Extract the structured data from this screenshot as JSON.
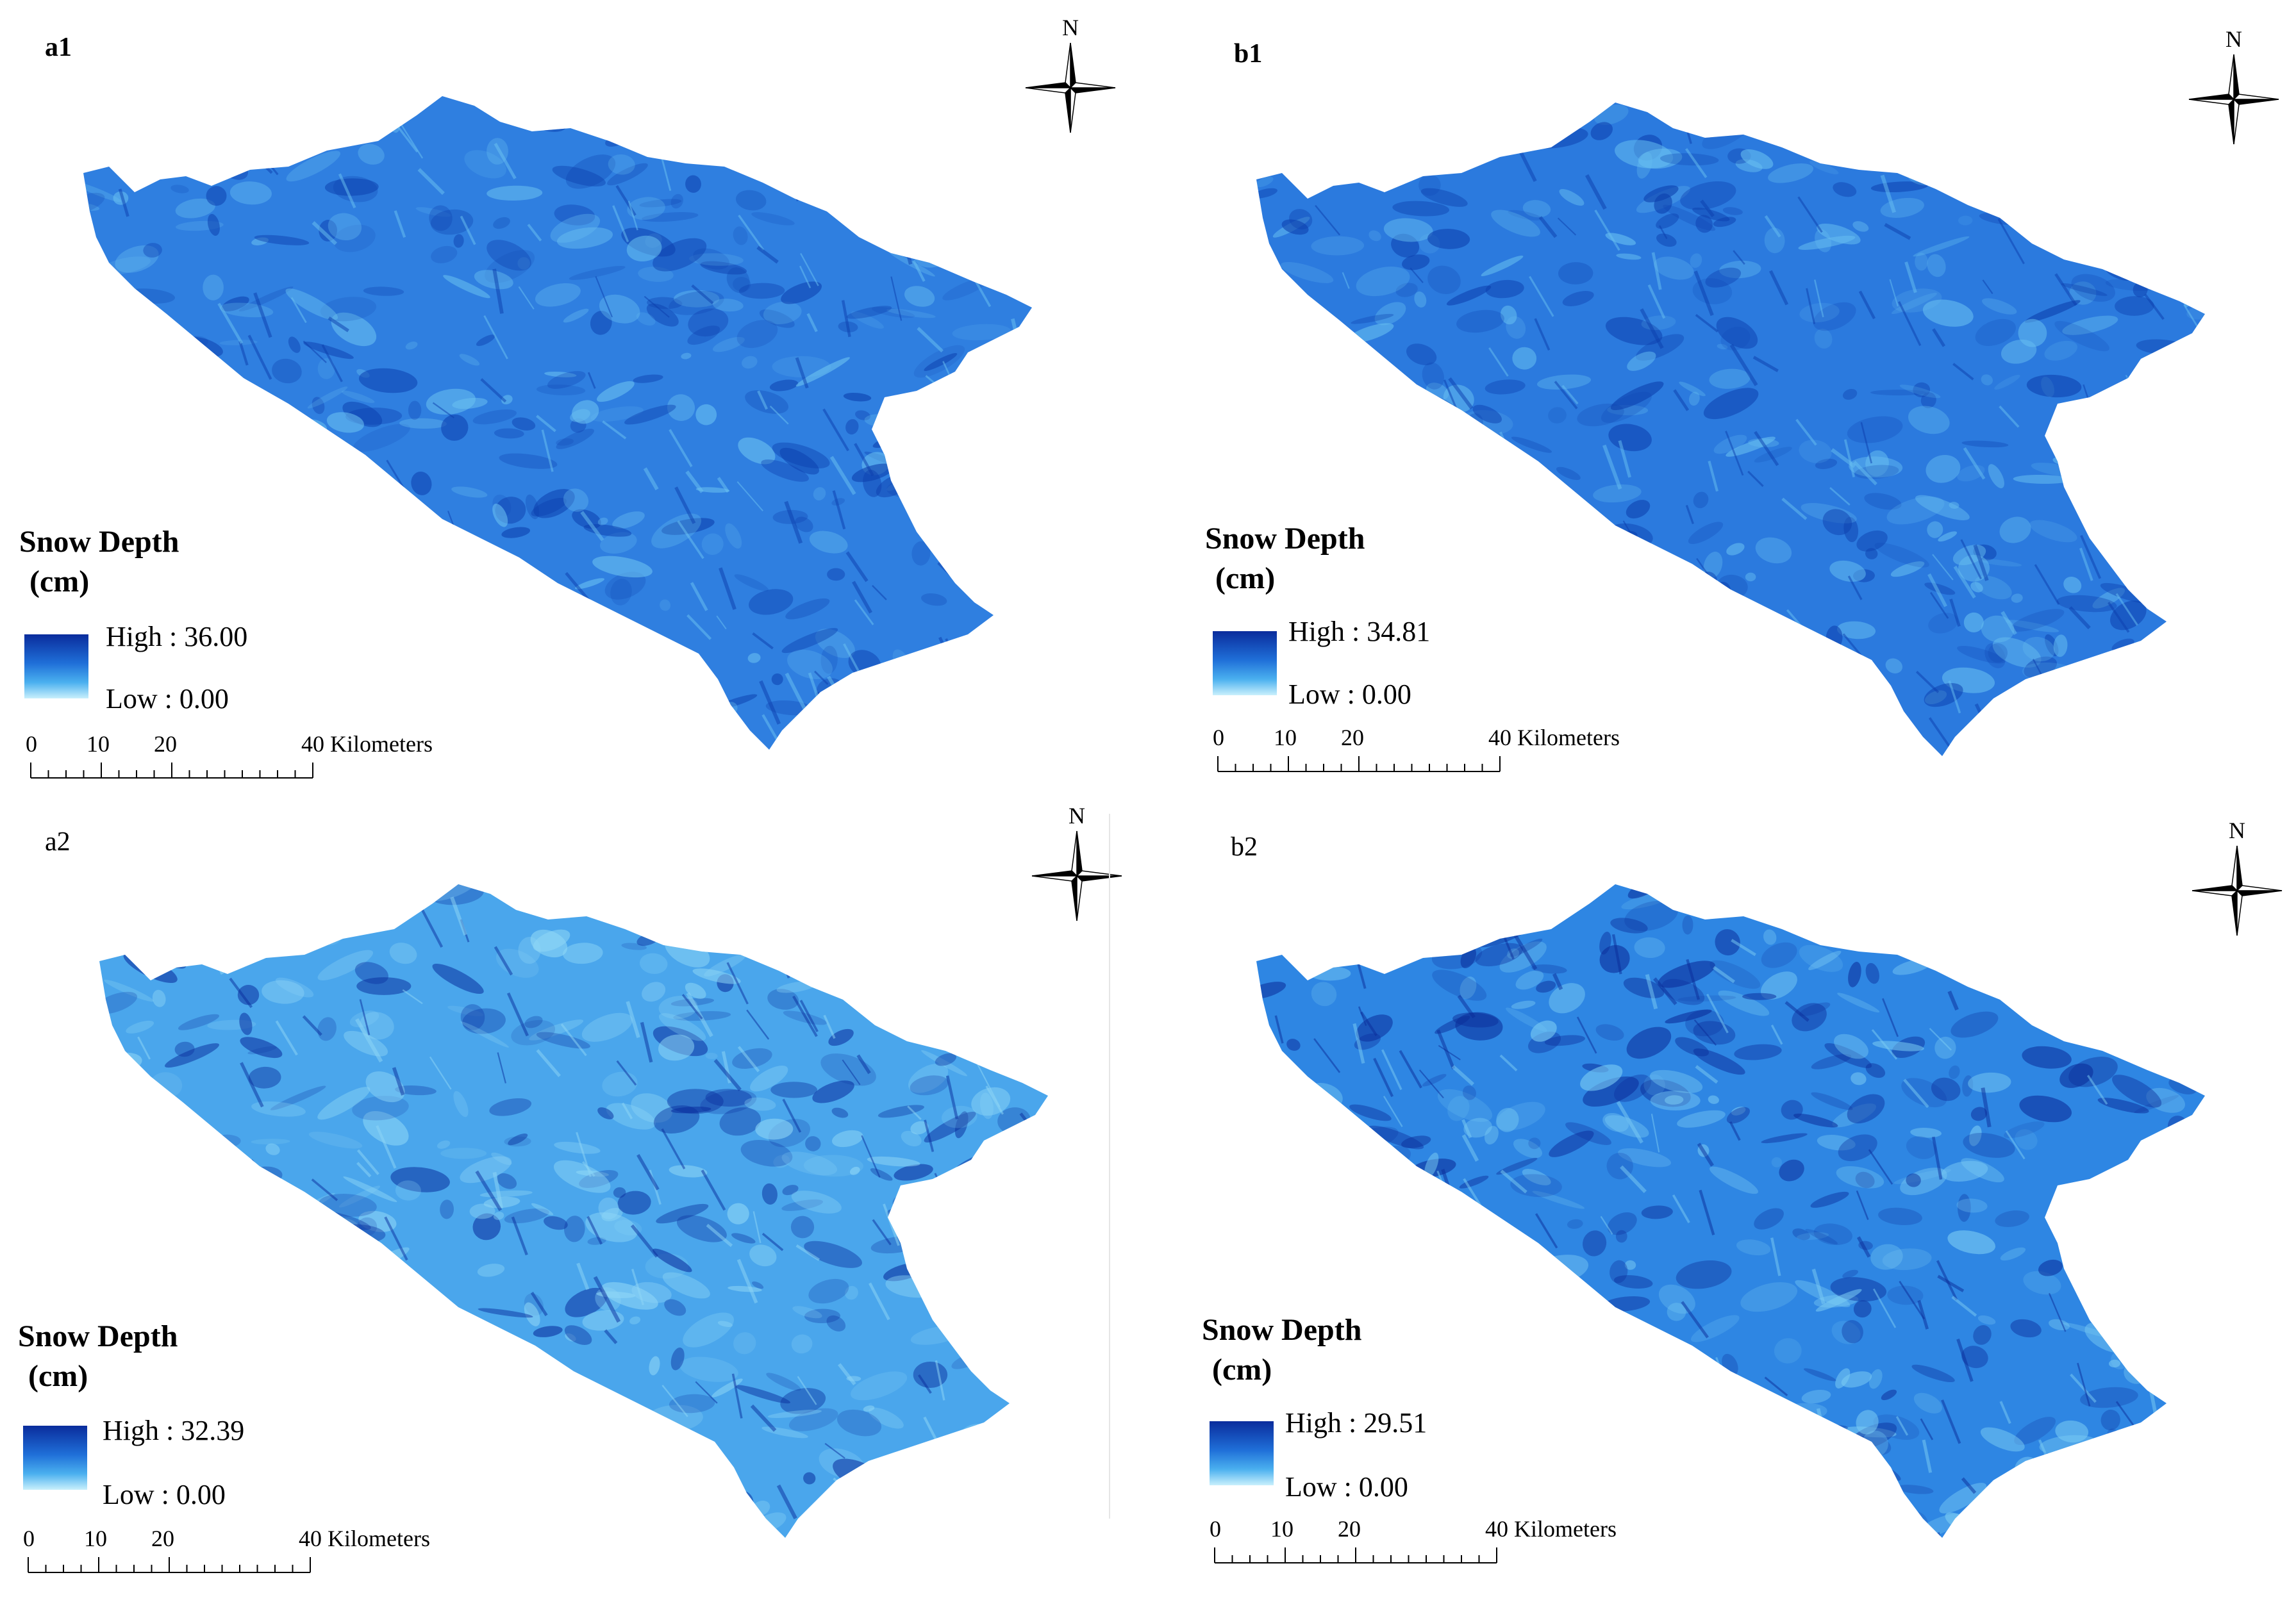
{
  "panels": [
    {
      "id": "a1",
      "label": "a1",
      "label_bold": true,
      "north": "N",
      "legend": {
        "title_line1": "Snow Depth",
        "title_line2": "(cm)",
        "high": "High : 36.00",
        "low": "Low : 0.00"
      },
      "scale": {
        "t0": "0",
        "t10": "10",
        "t20": "20",
        "t40": "40 Kilometers"
      },
      "colors": {
        "base": "#2f7fe0",
        "dark": "#0c3fae",
        "light": "#6cc3f2"
      }
    },
    {
      "id": "b1",
      "label": "b1",
      "label_bold": true,
      "north": "N",
      "legend": {
        "title_line1": "Snow Depth",
        "title_line2": "(cm)",
        "high": "High : 34.81",
        "low": "Low : 0.00"
      },
      "scale": {
        "t0": "0",
        "t10": "10",
        "t20": "20",
        "t40": "40 Kilometers"
      },
      "colors": {
        "base": "#2b7ade",
        "dark": "#0c3fae",
        "light": "#68c0f1"
      }
    },
    {
      "id": "a2",
      "label": "a2",
      "label_bold": false,
      "north": "N",
      "legend": {
        "title_line1": "Snow Depth",
        "title_line2": "(cm)",
        "high": "High : 32.39",
        "low": "Low : 0.00"
      },
      "scale": {
        "t0": "0",
        "t10": "10",
        "t20": "20",
        "t40": "40 Kilometers"
      },
      "colors": {
        "base": "#4aa6ec",
        "dark": "#0a2f9e",
        "light": "#8fd7f6"
      }
    },
    {
      "id": "b2",
      "label": "b2",
      "label_bold": false,
      "north": "N",
      "legend": {
        "title_line1": "Snow Depth",
        "title_line2": "(cm)",
        "high": "High : 29.51",
        "low": "Low : 0.00"
      },
      "scale": {
        "t0": "0",
        "t10": "10",
        "t20": "20",
        "t40": "40 Kilometers"
      },
      "colors": {
        "base": "#2e86e3",
        "dark": "#0b2d9a",
        "light": "#7ccdf4"
      }
    }
  ]
}
